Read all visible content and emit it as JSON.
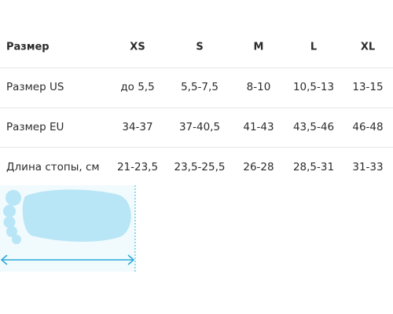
{
  "table": {
    "header": [
      "Размер",
      "XS",
      "S",
      "M",
      "L",
      "XL"
    ],
    "rows": [
      [
        "Размер US",
        "до 5,5",
        "5,5-7,5",
        "8-10",
        "10,5-13",
        "13-15"
      ],
      [
        "Размер EU",
        "34-37",
        "37-40,5",
        "41-43",
        "43,5-46",
        "46-48"
      ],
      [
        "Длина стопы, см",
        "21-23,5",
        "23,5-25,5",
        "26-28",
        "28,5-31",
        "31-33"
      ]
    ]
  }
}
